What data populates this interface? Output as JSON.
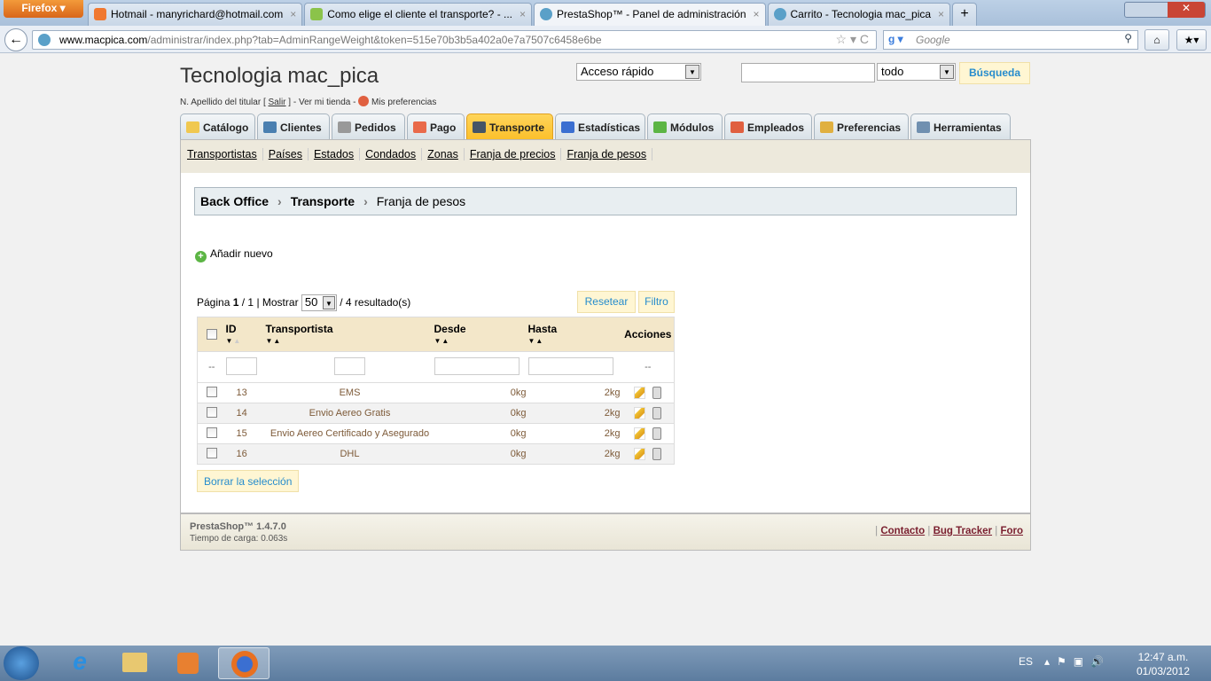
{
  "browser": {
    "menu_button": "Firefox",
    "tabs": [
      {
        "label": "Hotmail - manyrichard@hotmail.com",
        "active": false
      },
      {
        "label": "Como elige el cliente el transporte? - ...",
        "active": false
      },
      {
        "label": "PrestaShop™ - Panel de administración",
        "active": true
      },
      {
        "label": "Carrito - Tecnologia mac_pica",
        "active": false
      }
    ],
    "new_tab": "+",
    "url_domain": "www.macpica.com",
    "url_path": "/administrar/index.php?tab=AdminRangeWeight&token=515e70b3b5a402a0e7a7507c6458e6be",
    "search_placeholder": "Google"
  },
  "header": {
    "shop_name": "Tecnologia mac_pica",
    "user_prefix": "N. Apellido del titular [",
    "logout": "Salir",
    "user_mid": "] - Ver mi tienda -",
    "preferences": "Mis preferencias",
    "quick_access": "Acceso rápido",
    "search_value": "",
    "search_scope": "todo",
    "search_button": "Búsqueda"
  },
  "tabs": [
    {
      "label": "Catálogo",
      "icon": "folder-icon",
      "color": "#f0c850"
    },
    {
      "label": "Clientes",
      "icon": "user-icon",
      "color": "#4a7fb0"
    },
    {
      "label": "Pedidos",
      "icon": "cart-icon",
      "color": "#999999"
    },
    {
      "label": "Pago",
      "icon": "payment-icon",
      "color": "#e96a4a"
    },
    {
      "label": "Transporte",
      "icon": "truck-icon",
      "color": "#445566",
      "active": true
    },
    {
      "label": "Estadísticas",
      "icon": "chart-icon",
      "color": "#3b6fd1"
    },
    {
      "label": "Módulos",
      "icon": "puzzle-icon",
      "color": "#5cb544"
    },
    {
      "label": "Empleados",
      "icon": "employee-icon",
      "color": "#e06040"
    },
    {
      "label": "Preferencias",
      "icon": "preferences-icon",
      "color": "#e0b040"
    },
    {
      "label": "Herramientas",
      "icon": "wrench-icon",
      "color": "#7090b0"
    }
  ],
  "subnav": [
    "Transportistas",
    "Países",
    "Estados",
    "Condados",
    "Zonas",
    "Franja de precios",
    "Franja de pesos"
  ],
  "breadcrumb": [
    "Back Office",
    "Transporte",
    "Franja de pesos"
  ],
  "add_new": "Añadir nuevo",
  "pager": {
    "prefix": "Página",
    "page": "1",
    "total": "/ 1",
    "show": "| Mostrar",
    "per_page": "50",
    "results": "/ 4 resultado(s)"
  },
  "buttons": {
    "reset": "Resetear",
    "filter": "Filtro",
    "delete_selection": "Borrar la selección"
  },
  "table": {
    "headers": [
      "ID",
      "Transportista",
      "Desde",
      "Hasta",
      "Acciones"
    ],
    "filter_dash": "--",
    "rows": [
      {
        "id": "13",
        "carrier": "EMS",
        "from": "0kg",
        "to": "2kg"
      },
      {
        "id": "14",
        "carrier": "Envio Aereo Gratis",
        "from": "0kg",
        "to": "2kg"
      },
      {
        "id": "15",
        "carrier": "Envio Aereo Certificado y Asegurado",
        "from": "0kg",
        "to": "2kg"
      },
      {
        "id": "16",
        "carrier": "DHL",
        "from": "0kg",
        "to": "2kg"
      }
    ]
  },
  "footer": {
    "version": "PrestaShop™ 1.4.7.0",
    "load_time": "Tiempo de carga: 0.063s",
    "links": [
      "Contacto",
      "Bug Tracker",
      "Foro"
    ]
  },
  "taskbar": {
    "lang": "ES",
    "time": "12:47 a.m.",
    "date": "01/03/2012"
  }
}
